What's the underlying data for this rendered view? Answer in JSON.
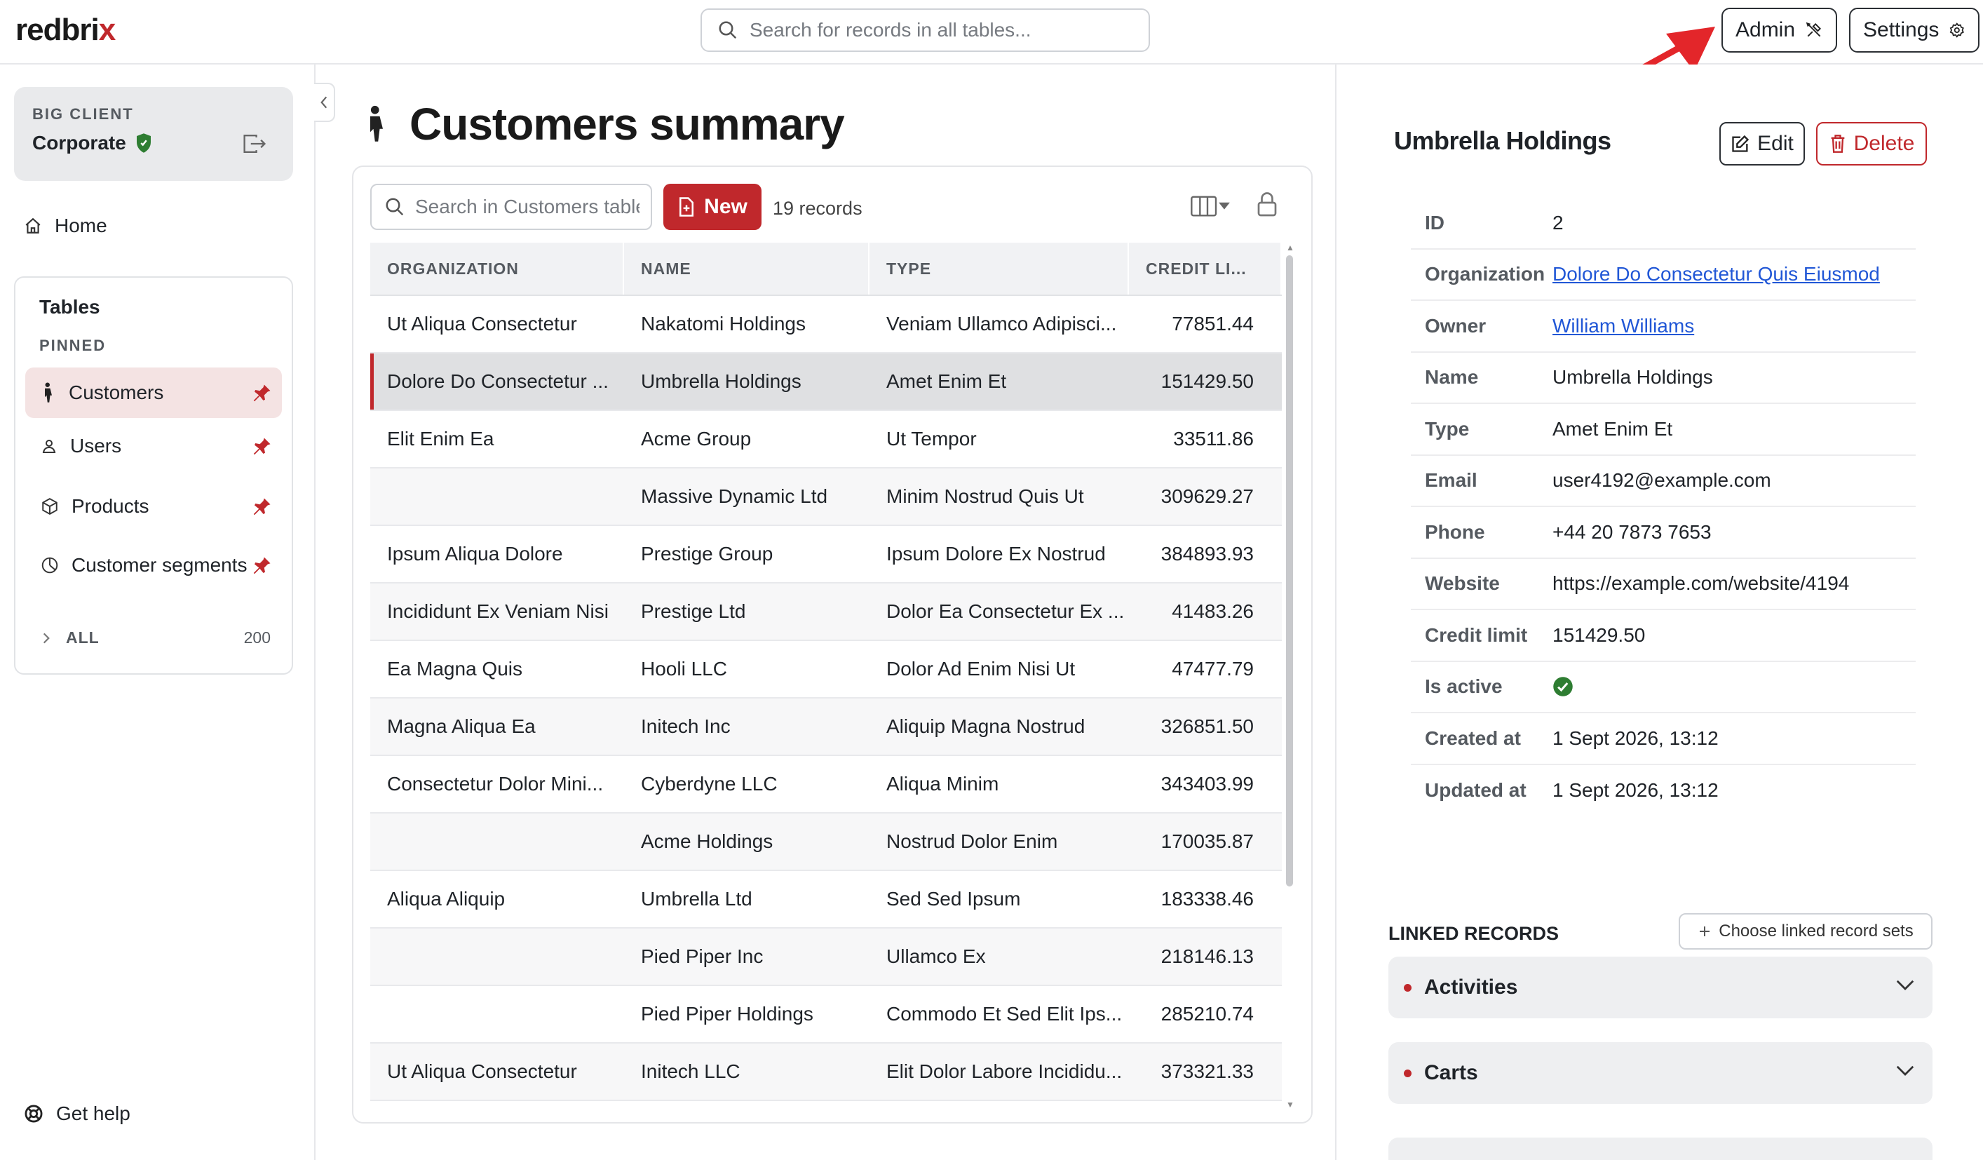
{
  "brand": {
    "logo_main": "redbri",
    "logo_accent": "x",
    "accent_color": "#c0282c"
  },
  "header": {
    "search_placeholder": "Search for records in all tables...",
    "admin_label": "Admin",
    "settings_label": "Settings"
  },
  "sidebar": {
    "client_label": "BIG CLIENT",
    "client_name": "Corporate",
    "home_label": "Home",
    "tables_title": "Tables",
    "pinned_label": "PINNED",
    "pinned_items": [
      {
        "label": "Customers",
        "icon": "person-icon",
        "active": true
      },
      {
        "label": "Users",
        "icon": "user-icon"
      },
      {
        "label": "Products",
        "icon": "box-icon"
      },
      {
        "label": "Customer segments",
        "icon": "pie-chart-icon"
      }
    ],
    "all_label": "ALL",
    "all_count": "200",
    "help_label": "Get help"
  },
  "main": {
    "title": "Customers summary",
    "table_search_placeholder": "Search in Customers table",
    "new_label": "New",
    "record_count": "19 records",
    "columns": [
      "ORGANIZATION",
      "NAME",
      "TYPE",
      "CREDIT LI..."
    ],
    "rows": [
      [
        "Ut Aliqua Consectetur",
        "Nakatomi Holdings",
        "Veniam Ullamco Adipisci...",
        "77851.44"
      ],
      [
        "Dolore Do Consectetur ...",
        "Umbrella Holdings",
        "Amet Enim Et",
        "151429.50"
      ],
      [
        "Elit Enim Ea",
        "Acme Group",
        "Ut Tempor",
        "33511.86"
      ],
      [
        "",
        "Massive Dynamic Ltd",
        "Minim Nostrud Quis Ut",
        "309629.27"
      ],
      [
        "Ipsum Aliqua Dolore",
        "Prestige Group",
        "Ipsum Dolore Ex Nostrud",
        "384893.93"
      ],
      [
        "Incididunt Ex Veniam Nisi",
        "Prestige Ltd",
        "Dolor Ea Consectetur Ex ...",
        "41483.26"
      ],
      [
        "Ea Magna Quis",
        "Hooli LLC",
        "Dolor Ad Enim Nisi Ut",
        "47477.79"
      ],
      [
        "Magna Aliqua Ea",
        "Initech Inc",
        "Aliquip Magna Nostrud",
        "326851.50"
      ],
      [
        "Consectetur Dolor Mini...",
        "Cyberdyne LLC",
        "Aliqua Minim",
        "343403.99"
      ],
      [
        "",
        "Acme Holdings",
        "Nostrud Dolor Enim",
        "170035.87"
      ],
      [
        "Aliqua Aliquip",
        "Umbrella Ltd",
        "Sed Sed Ipsum",
        "183338.46"
      ],
      [
        "",
        "Pied Piper Inc",
        "Ullamco Ex",
        "218146.13"
      ],
      [
        "",
        "Pied Piper Holdings",
        "Commodo Et Sed Elit Ips...",
        "285210.74"
      ],
      [
        "Ut Aliqua Consectetur",
        "Initech LLC",
        "Elit Dolor Labore Incididu...",
        "373321.33"
      ]
    ],
    "selected_row": 1
  },
  "detail": {
    "title": "Umbrella Holdings",
    "edit_label": "Edit",
    "delete_label": "Delete",
    "fields": [
      {
        "label": "ID",
        "value": "2"
      },
      {
        "label": "Organization",
        "value": "Dolore Do Consectetur Quis Eiusmod",
        "link": true
      },
      {
        "label": "Owner",
        "value": "William Williams",
        "link": true
      },
      {
        "label": "Name",
        "value": "Umbrella Holdings"
      },
      {
        "label": "Type",
        "value": "Amet Enim Et"
      },
      {
        "label": "Email",
        "value": "user4192@example.com"
      },
      {
        "label": "Phone",
        "value": "+44 20 7873 7653"
      },
      {
        "label": "Website",
        "value": "https://example.com/website/4194"
      },
      {
        "label": "Credit limit",
        "value": "151429.50"
      },
      {
        "label": "Is active",
        "value": "",
        "icon": "check-circle-icon"
      },
      {
        "label": "Created at",
        "value": "1 Sept 2026, 13:12"
      },
      {
        "label": "Updated at",
        "value": "1 Sept 2026, 13:12"
      }
    ],
    "linked_title": "LINKED RECORDS",
    "choose_label": "Choose linked record sets",
    "linked_sets": [
      "Activities",
      "Carts"
    ]
  }
}
